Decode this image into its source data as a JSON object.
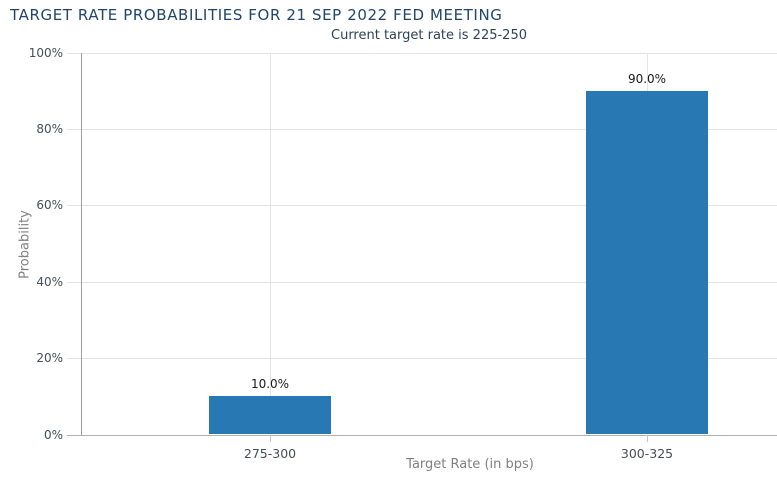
{
  "chart_data": {
    "type": "bar",
    "title": "TARGET RATE PROBABILITIES FOR 21 SEP 2022 FED MEETING",
    "subtitle": "Current target rate is 225-250",
    "categories": [
      "275-300",
      "300-325"
    ],
    "values": [
      10.0,
      90.0
    ],
    "value_labels": [
      "10.0%",
      "90.0%"
    ],
    "xlabel": "Target Rate (in bps)",
    "ylabel": "Probability",
    "ylim": [
      0,
      100
    ],
    "yticks": [
      0,
      20,
      40,
      60,
      80,
      100
    ],
    "ytick_labels": [
      "0%",
      "20%",
      "40%",
      "60%",
      "80%",
      "100%"
    ],
    "grid": true,
    "legend_position": "none"
  },
  "colors": {
    "bar": "#2878b4",
    "title": "#1f4568",
    "subtitle": "#2e4257",
    "gridline": "#e4e4e4",
    "axis_line": "#9e9e9e",
    "baseline": "#b0b0b0",
    "category_tick": "#c6c6c6",
    "tick_label": "#454e58",
    "value_label": "#1a1a1a",
    "axis_title": "#808080"
  }
}
